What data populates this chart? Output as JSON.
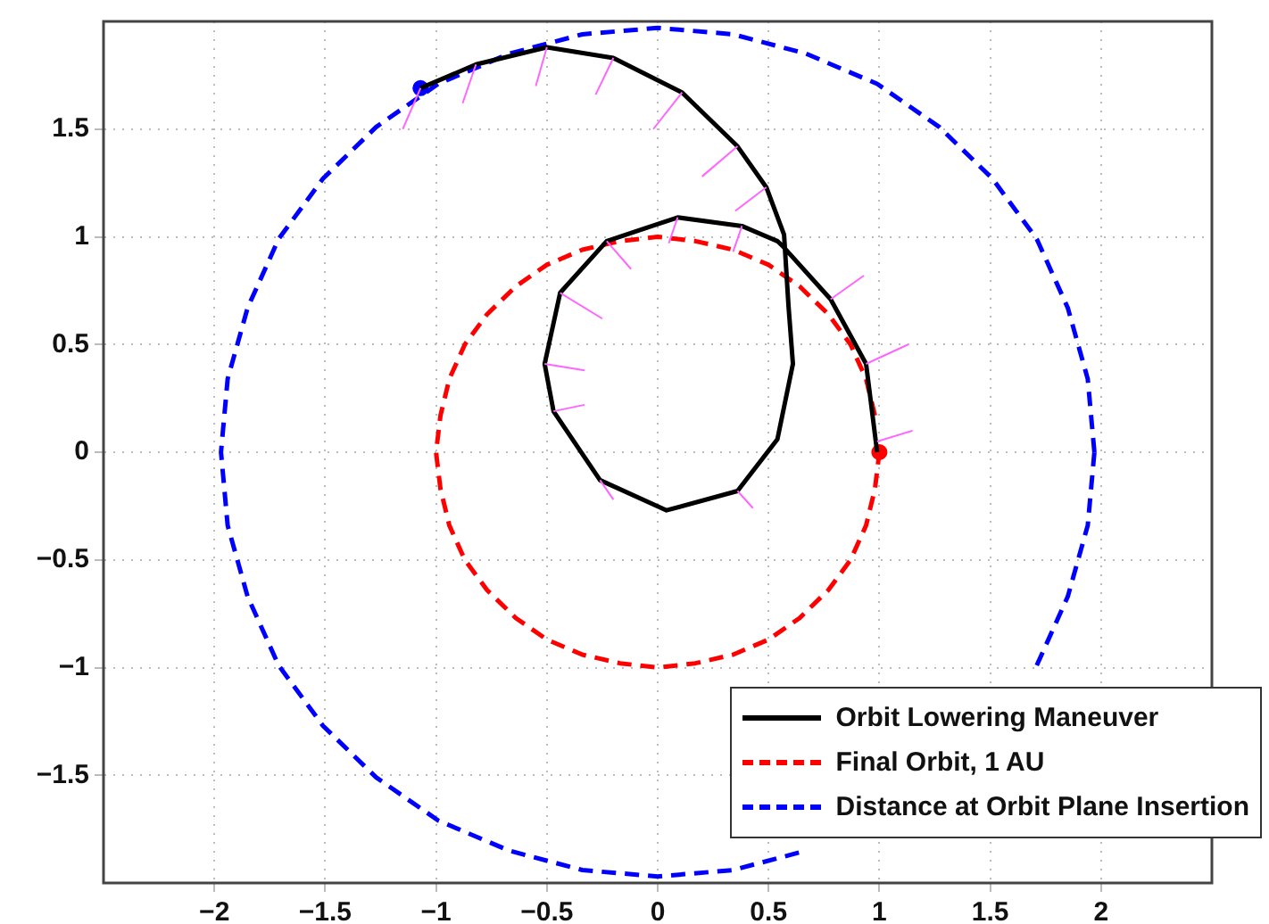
{
  "chart_data": {
    "type": "line",
    "xlim": [
      -2.5,
      2.5
    ],
    "ylim": [
      -2,
      2
    ],
    "xticks": [
      {
        "value": -2,
        "label": "−2"
      },
      {
        "value": -1.5,
        "label": "−1.5"
      },
      {
        "value": -1,
        "label": "−1"
      },
      {
        "value": -0.5,
        "label": "−0.5"
      },
      0,
      0.5,
      1,
      1.5,
      2
    ],
    "yticks": [
      {
        "value": -1.5,
        "label": "−1.5"
      },
      {
        "value": -1,
        "label": "−1"
      },
      {
        "value": -0.5,
        "label": "−0.5"
      },
      0,
      0.5,
      1,
      1.5
    ],
    "grid": true,
    "legend": "bottom right",
    "series": [
      {
        "color": "#ff66ff",
        "line_style": "solid",
        "x": [
          -1.07,
          -1.15,
          null,
          -0.82,
          -0.88,
          null,
          -0.5,
          -0.55,
          null,
          -0.2,
          -0.28,
          null,
          0.11,
          -0.02,
          null,
          0.36,
          0.2,
          null,
          0.49,
          0.35,
          null,
          0.38,
          0.34,
          null,
          0.09,
          0.05,
          null,
          -0.23,
          -0.12,
          null,
          -0.44,
          -0.25,
          null,
          -0.51,
          -0.33,
          null,
          -0.47,
          -0.33,
          null,
          -0.26,
          -0.2,
          null,
          0.36,
          0.43,
          null,
          0.78,
          0.93,
          null,
          0.94,
          1.13,
          null,
          0.99,
          1.15
        ],
        "values": [
          1.69,
          1.5,
          null,
          1.8,
          1.62,
          null,
          1.88,
          1.7,
          null,
          1.83,
          1.66,
          null,
          1.67,
          1.5,
          null,
          1.42,
          1.28,
          null,
          1.23,
          1.12,
          null,
          1.05,
          0.93,
          null,
          1.09,
          0.97,
          null,
          0.98,
          0.85,
          null,
          0.74,
          0.62,
          null,
          0.41,
          0.38,
          null,
          0.19,
          0.22,
          null,
          -0.13,
          -0.22,
          null,
          -0.18,
          -0.26,
          null,
          0.71,
          0.82,
          null,
          0.41,
          0.5,
          null,
          0.05,
          0.1
        ]
      },
      {
        "name": "Orbit Lowering Maneuver",
        "color": "#000000",
        "line_style": "solid",
        "x": [
          -1.07,
          -0.82,
          -0.5,
          -0.2,
          0.11,
          0.36,
          0.49,
          0.57,
          0.59,
          0.61,
          0.54,
          0.36,
          0.04,
          -0.26,
          -0.47,
          -0.51,
          -0.44,
          -0.23,
          0.09,
          0.38,
          0.54,
          0.57,
          0.78,
          0.94,
          0.99
        ],
        "values": [
          1.69,
          1.8,
          1.88,
          1.83,
          1.67,
          1.42,
          1.23,
          1.01,
          0.68,
          0.41,
          0.06,
          -0.18,
          -0.27,
          -0.13,
          0.19,
          0.41,
          0.74,
          0.98,
          1.09,
          1.05,
          0.98,
          0.95,
          0.71,
          0.41,
          0
        ]
      },
      {
        "name": "Final Orbit, 1 AU",
        "color": "#ff0000",
        "line_style": "dashed",
        "x": [
          0.98,
          0.94,
          0.87,
          0.77,
          0.64,
          0.5,
          0.34,
          0.17,
          0,
          -0.17,
          -0.34,
          -0.5,
          -0.64,
          -0.77,
          -0.87,
          -0.94,
          -0.98,
          -1,
          -0.98,
          -0.94,
          -0.87,
          -0.77,
          -0.64,
          -0.5,
          -0.34,
          -0.17,
          0,
          0.17,
          0.34,
          0.5,
          0.64,
          0.77,
          0.87,
          0.94,
          0.98,
          1
        ],
        "values": [
          0.17,
          0.34,
          0.5,
          0.64,
          0.77,
          0.87,
          0.94,
          0.98,
          1,
          0.98,
          0.94,
          0.87,
          0.77,
          0.64,
          0.5,
          0.34,
          0.17,
          0,
          -0.17,
          -0.34,
          -0.5,
          -0.64,
          -0.77,
          -0.87,
          -0.94,
          -0.98,
          -1,
          -0.98,
          -0.94,
          -0.87,
          -0.77,
          -0.64,
          -0.5,
          -0.34,
          -0.17,
          0
        ]
      },
      {
        "name": "Distance at Orbit Plane Insertion",
        "color": "#0000ff",
        "line_style": "dashed",
        "x": [
          1.97,
          1.94,
          1.85,
          1.71,
          1.51,
          1.27,
          0.99,
          0.67,
          0.34,
          0,
          -0.34,
          -0.67,
          -0.99,
          -1.27,
          -1.51,
          -1.71,
          -1.85,
          -1.94,
          -1.97,
          -1.94,
          -1.85,
          -1.71,
          -1.51,
          -1.27,
          -0.99,
          -0.67,
          -0.34,
          0,
          0.34,
          0.67,
          null,
          null,
          null,
          1.71,
          1.85,
          1.94,
          1.97
        ],
        "values": [
          0,
          0.34,
          0.67,
          0.99,
          1.27,
          1.51,
          1.71,
          1.85,
          1.94,
          1.97,
          1.94,
          1.85,
          1.71,
          1.51,
          1.27,
          0.99,
          0.67,
          0.34,
          0,
          -0.34,
          -0.67,
          -0.99,
          -1.27,
          -1.51,
          -1.71,
          -1.85,
          -1.94,
          -1.97,
          -1.94,
          -1.85,
          null,
          null,
          null,
          -0.99,
          -0.67,
          -0.34,
          0
        ]
      },
      {
        "type": "scatter",
        "color": "#0000ff",
        "marker": "circle",
        "x": [
          -1.07
        ],
        "values": [
          1.69
        ]
      },
      {
        "type": "scatter",
        "color": "#ff0000",
        "marker": "circle",
        "x": [
          1
        ],
        "values": [
          0
        ]
      }
    ]
  }
}
